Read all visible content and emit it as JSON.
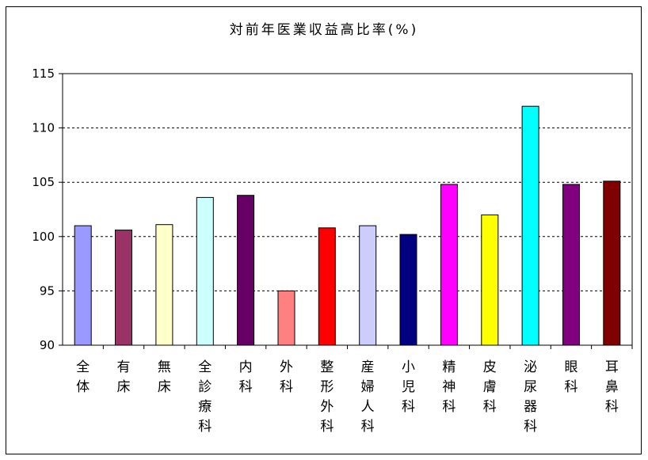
{
  "chart_data": {
    "type": "bar",
    "title": "対前年医業収益高比率(%)",
    "xlabel": "",
    "ylabel": "",
    "ylim": [
      90,
      115
    ],
    "yticks": [
      "90",
      "95",
      "100",
      "105",
      "110",
      "115"
    ],
    "grid": true,
    "legend": "none",
    "categories": [
      "全体",
      "有床",
      "無床",
      "全診療科",
      "内科",
      "外科",
      "整形外科",
      "産婦人科",
      "小児科",
      "精神科",
      "皮膚科",
      "泌尿器科",
      "眼科",
      "耳鼻科"
    ],
    "values": [
      101.0,
      100.6,
      101.1,
      103.6,
      103.8,
      95.0,
      100.8,
      101.0,
      100.2,
      104.8,
      102.0,
      112.0,
      104.8,
      105.1
    ],
    "colors": [
      "#9999ff",
      "#993366",
      "#ffffcc",
      "#ccffff",
      "#660066",
      "#ff8080",
      "#ff0000",
      "#ccccff",
      "#000080",
      "#ff00ff",
      "#ffff00",
      "#00ffff",
      "#800080",
      "#800000"
    ]
  }
}
